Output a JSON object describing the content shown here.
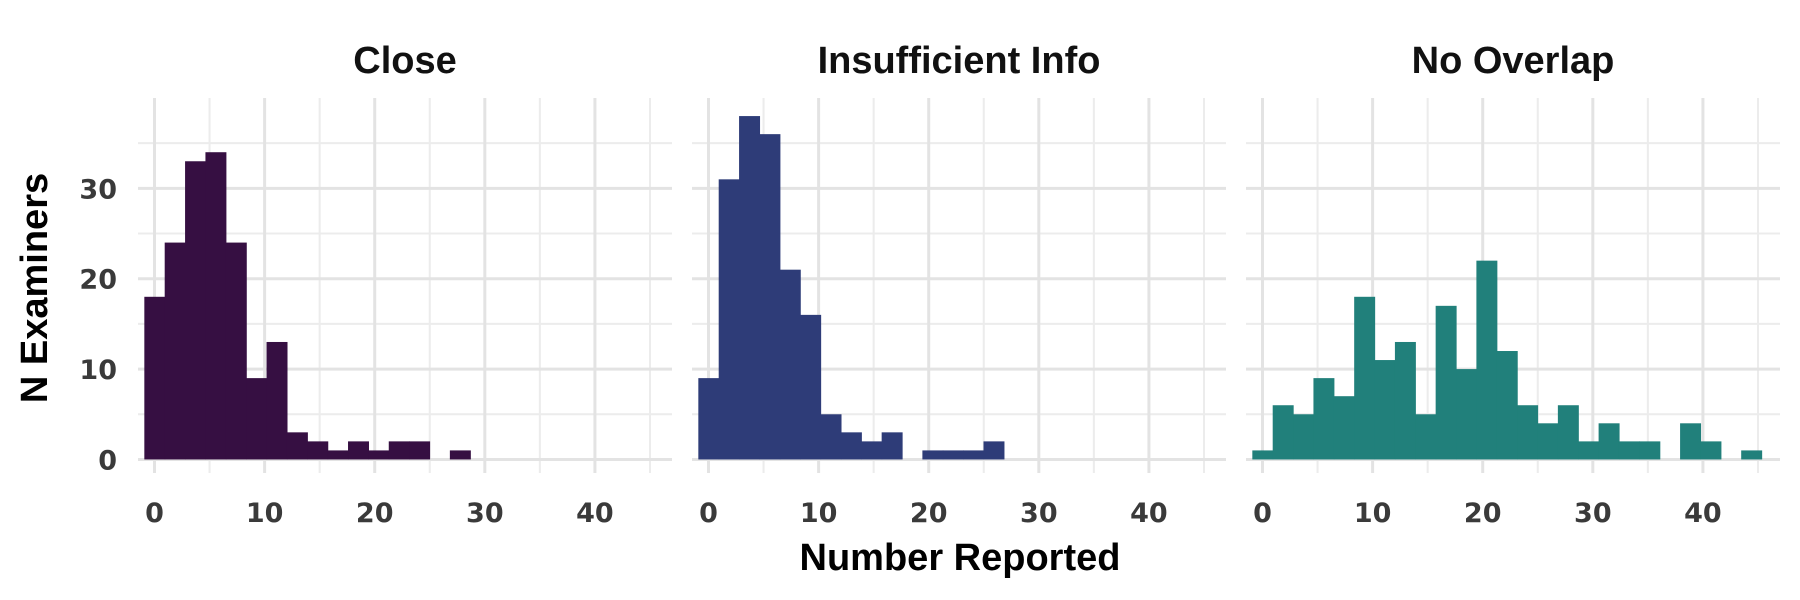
{
  "chart_data": {
    "type": "bar",
    "subtype": "faceted-histogram",
    "xlabel": "Number Reported",
    "ylabel": "N Examiners",
    "xlim": [
      -1.5,
      47
    ],
    "ylim": [
      -1.5,
      40
    ],
    "x_ticks": [
      0,
      10,
      20,
      30,
      40
    ],
    "y_ticks": [
      0,
      10,
      20,
      30
    ],
    "bin_width": 1.85,
    "grid": true,
    "legend": "none",
    "panels": [
      {
        "title": "Close",
        "color": "#360f42",
        "bins": [
          {
            "x": 0.0,
            "count": 18
          },
          {
            "x": 1.85,
            "count": 24
          },
          {
            "x": 3.7,
            "count": 33
          },
          {
            "x": 5.55,
            "count": 34
          },
          {
            "x": 7.4,
            "count": 24
          },
          {
            "x": 9.25,
            "count": 9
          },
          {
            "x": 11.1,
            "count": 13
          },
          {
            "x": 12.95,
            "count": 3
          },
          {
            "x": 14.8,
            "count": 2
          },
          {
            "x": 16.65,
            "count": 1
          },
          {
            "x": 18.5,
            "count": 2
          },
          {
            "x": 20.35,
            "count": 1
          },
          {
            "x": 22.2,
            "count": 2
          },
          {
            "x": 24.05,
            "count": 2
          },
          {
            "x": 25.9,
            "count": 0
          },
          {
            "x": 27.75,
            "count": 1
          }
        ]
      },
      {
        "title": "Insufficient Info",
        "color": "#2e3c78",
        "bins": [
          {
            "x": 0.0,
            "count": 9
          },
          {
            "x": 1.85,
            "count": 31
          },
          {
            "x": 3.7,
            "count": 38
          },
          {
            "x": 5.55,
            "count": 36
          },
          {
            "x": 7.4,
            "count": 21
          },
          {
            "x": 9.25,
            "count": 16
          },
          {
            "x": 11.1,
            "count": 5
          },
          {
            "x": 12.95,
            "count": 3
          },
          {
            "x": 14.8,
            "count": 2
          },
          {
            "x": 16.65,
            "count": 3
          },
          {
            "x": 18.5,
            "count": 0
          },
          {
            "x": 20.35,
            "count": 1
          },
          {
            "x": 22.2,
            "count": 1
          },
          {
            "x": 24.05,
            "count": 1
          },
          {
            "x": 25.9,
            "count": 2
          }
        ]
      },
      {
        "title": "No Overlap",
        "color": "#21807b",
        "bins": [
          {
            "x": 0.0,
            "count": 1
          },
          {
            "x": 1.85,
            "count": 6
          },
          {
            "x": 3.7,
            "count": 5
          },
          {
            "x": 5.55,
            "count": 9
          },
          {
            "x": 7.4,
            "count": 7
          },
          {
            "x": 9.25,
            "count": 18
          },
          {
            "x": 11.1,
            "count": 11
          },
          {
            "x": 12.95,
            "count": 13
          },
          {
            "x": 14.8,
            "count": 5
          },
          {
            "x": 16.65,
            "count": 17
          },
          {
            "x": 18.5,
            "count": 10
          },
          {
            "x": 20.35,
            "count": 22
          },
          {
            "x": 22.2,
            "count": 12
          },
          {
            "x": 24.05,
            "count": 6
          },
          {
            "x": 25.9,
            "count": 4
          },
          {
            "x": 27.75,
            "count": 6
          },
          {
            "x": 29.6,
            "count": 2
          },
          {
            "x": 31.45,
            "count": 4
          },
          {
            "x": 33.3,
            "count": 2
          },
          {
            "x": 35.15,
            "count": 2
          },
          {
            "x": 37.0,
            "count": 0
          },
          {
            "x": 38.85,
            "count": 4
          },
          {
            "x": 40.7,
            "count": 2
          },
          {
            "x": 42.55,
            "count": 0
          },
          {
            "x": 44.4,
            "count": 1
          }
        ]
      }
    ]
  }
}
